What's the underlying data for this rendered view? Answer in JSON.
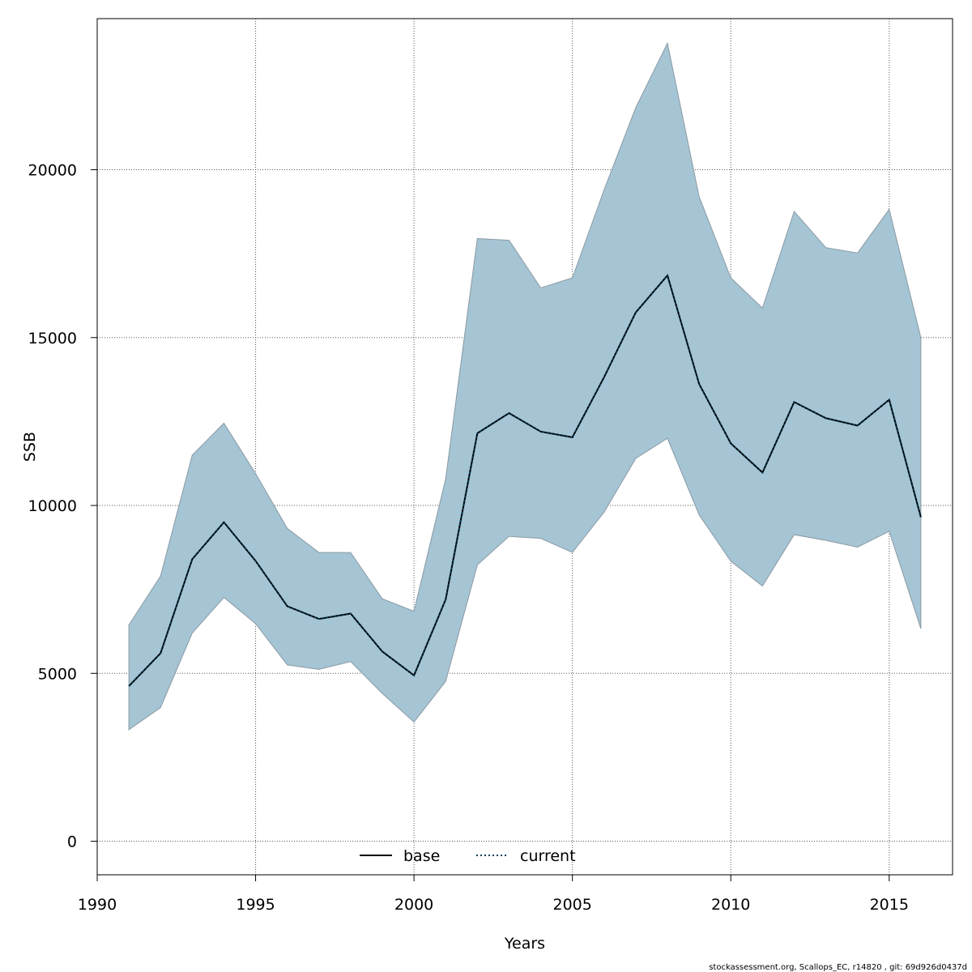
{
  "chart_data": {
    "type": "area",
    "xlabel": "Years",
    "ylabel": "SSB",
    "xlim": [
      1990,
      2017
    ],
    "ylim": [
      -1000,
      24500
    ],
    "x_ticks": [
      1990,
      1995,
      2000,
      2005,
      2010,
      2015
    ],
    "y_ticks": [
      0,
      5000,
      10000,
      15000,
      20000
    ],
    "grid": true,
    "legend_position": "bottom-center",
    "x": [
      1991,
      1992,
      1993,
      1994,
      1995,
      1996,
      1997,
      1998,
      1999,
      2000,
      2001,
      2002,
      2003,
      2004,
      2005,
      2006,
      2007,
      2008,
      2009,
      2010,
      2011,
      2012,
      2013,
      2014,
      2015,
      2016
    ],
    "series": [
      {
        "name": "current",
        "style": "dotted",
        "color": "#003F5C",
        "values": [
          4620,
          5600,
          8400,
          9500,
          8350,
          7000,
          6620,
          6780,
          5650,
          4940,
          7200,
          12150,
          12750,
          12200,
          12030,
          13820,
          15750,
          16850,
          13620,
          11850,
          10980,
          13080,
          12600,
          12380,
          13150,
          9650
        ]
      }
    ],
    "band": {
      "fill_color": "#A5C4D4",
      "edge_color": "#8A9AA4",
      "lower": [
        3320,
        3980,
        6200,
        7260,
        6480,
        5250,
        5120,
        5350,
        4400,
        3550,
        4760,
        8230,
        9080,
        9020,
        8600,
        9800,
        11400,
        12000,
        9720,
        8340,
        7600,
        9130,
        8960,
        8760,
        9230,
        6330
      ],
      "upper": [
        6440,
        7900,
        11500,
        12450,
        10950,
        9320,
        8600,
        8600,
        7220,
        6850,
        10800,
        17950,
        17900,
        16480,
        16780,
        19400,
        21850,
        23770,
        19200,
        16780,
        15880,
        18760,
        17680,
        17520,
        18820,
        15000
      ]
    },
    "legend": [
      {
        "label": "base",
        "style": "solid",
        "color": "#000000"
      },
      {
        "label": "current",
        "style": "dotted",
        "color": "#003F5C"
      }
    ],
    "footer_text": "stockassessment.org, Scallops_EC, r14820 , git: 69d926d0437d"
  }
}
